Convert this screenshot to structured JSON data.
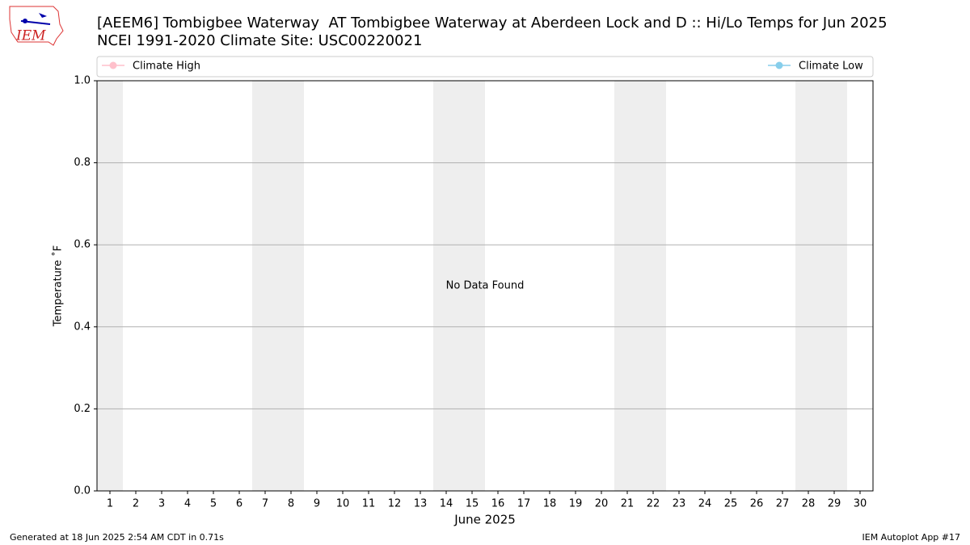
{
  "logo_text": "IEM",
  "chart_data": {
    "type": "line",
    "title": "[AEEM6] Tombigbee Waterway  AT Tombigbee Waterway at Aberdeen Lock and D :: Hi/Lo Temps for Jun 2025",
    "subtitle": "NCEI 1991-2020 Climate Site: USC00220021",
    "xlabel": "June 2025",
    "ylabel": "Temperature ˚F",
    "x": [],
    "series": [
      {
        "name": "Climate High",
        "color": "#ffc0cb",
        "values": []
      },
      {
        "name": "Climate Low",
        "color": "#87ceeb",
        "values": []
      }
    ],
    "xlim": [
      0.5,
      30.5
    ],
    "xticks": [
      1,
      2,
      3,
      4,
      5,
      6,
      7,
      8,
      9,
      10,
      11,
      12,
      13,
      14,
      15,
      16,
      17,
      18,
      19,
      20,
      21,
      22,
      23,
      24,
      25,
      26,
      27,
      28,
      29,
      30
    ],
    "ylim": [
      0,
      1
    ],
    "yticks": [
      {
        "value": 0,
        "label": "0.0"
      },
      0.2,
      0.4,
      0.6,
      0.8,
      {
        "value": 1,
        "label": "1.0"
      }
    ],
    "grid": "y",
    "legend": "top",
    "shaded_spans": [
      [
        0.5,
        1.5
      ],
      [
        6.5,
        8.5
      ],
      [
        13.5,
        15.5
      ],
      [
        20.5,
        22.5
      ],
      [
        27.5,
        29.5
      ]
    ],
    "shade_color": "#eeeeee",
    "annotations": [
      {
        "text": "No Data Found",
        "x": 15.5,
        "y": 0.5
      }
    ],
    "footer_left": "Generated at 18 Jun 2025 2:54 AM CDT in 0.71s",
    "footer_right": "IEM Autoplot App #17"
  }
}
